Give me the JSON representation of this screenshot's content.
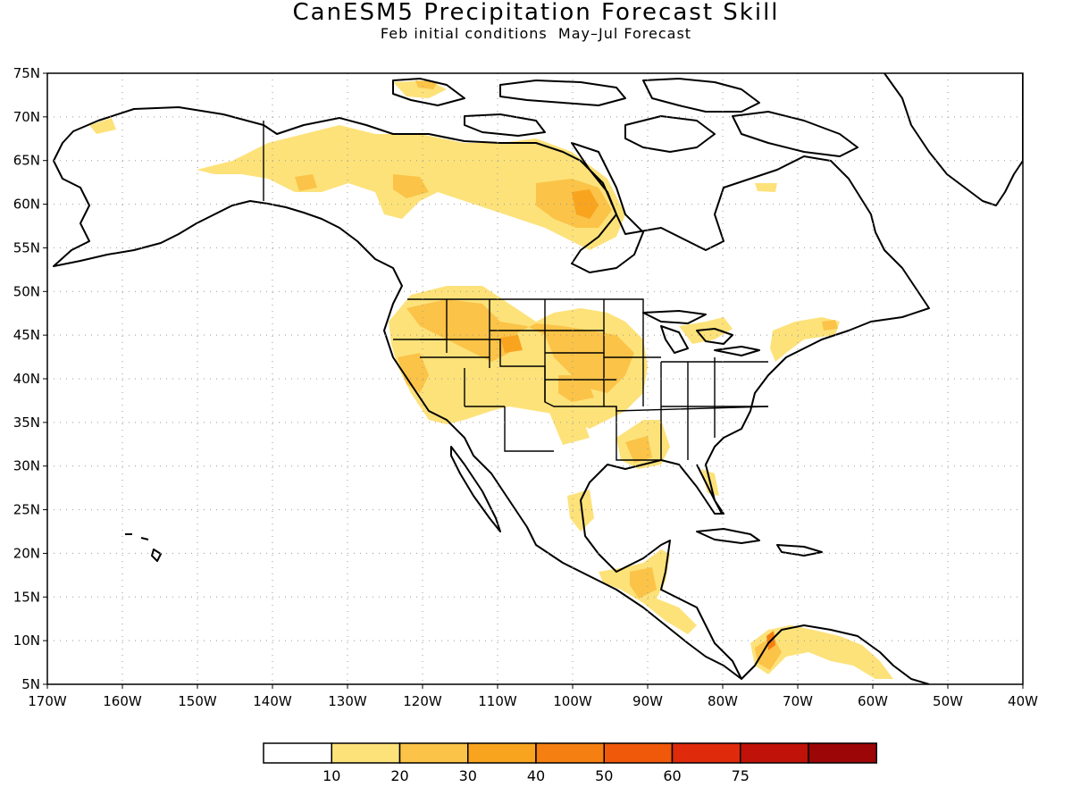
{
  "title": "CanESM5 Precipitation Forecast Skill",
  "subtitle": "Feb initial conditions  May–Jul Forecast",
  "map": {
    "lon_range": [
      -170,
      -40
    ],
    "lat_range": [
      5,
      75
    ],
    "lat_labels": [
      "5N",
      "10N",
      "15N",
      "20N",
      "25N",
      "30N",
      "35N",
      "40N",
      "45N",
      "50N",
      "55N",
      "60N",
      "65N",
      "70N",
      "75N"
    ],
    "lon_labels": [
      "170W",
      "160W",
      "150W",
      "140W",
      "130W",
      "120W",
      "110W",
      "100W",
      "90W",
      "80W",
      "70W",
      "60W",
      "50W",
      "40W"
    ],
    "grid": "dotted"
  },
  "colorbar": {
    "labels": [
      "10",
      "20",
      "30",
      "40",
      "50",
      "60",
      "75"
    ],
    "colors": [
      "#ffffff",
      "#fde27a",
      "#fbc347",
      "#f9a41f",
      "#f57f10",
      "#f0580a",
      "#df2a0c",
      "#c01208",
      "#9c0606"
    ]
  },
  "skill_colors": {
    "low": "#fde27a",
    "mid": "#fbc347",
    "high": "#f9a41f",
    "peak": "#f57f10"
  }
}
